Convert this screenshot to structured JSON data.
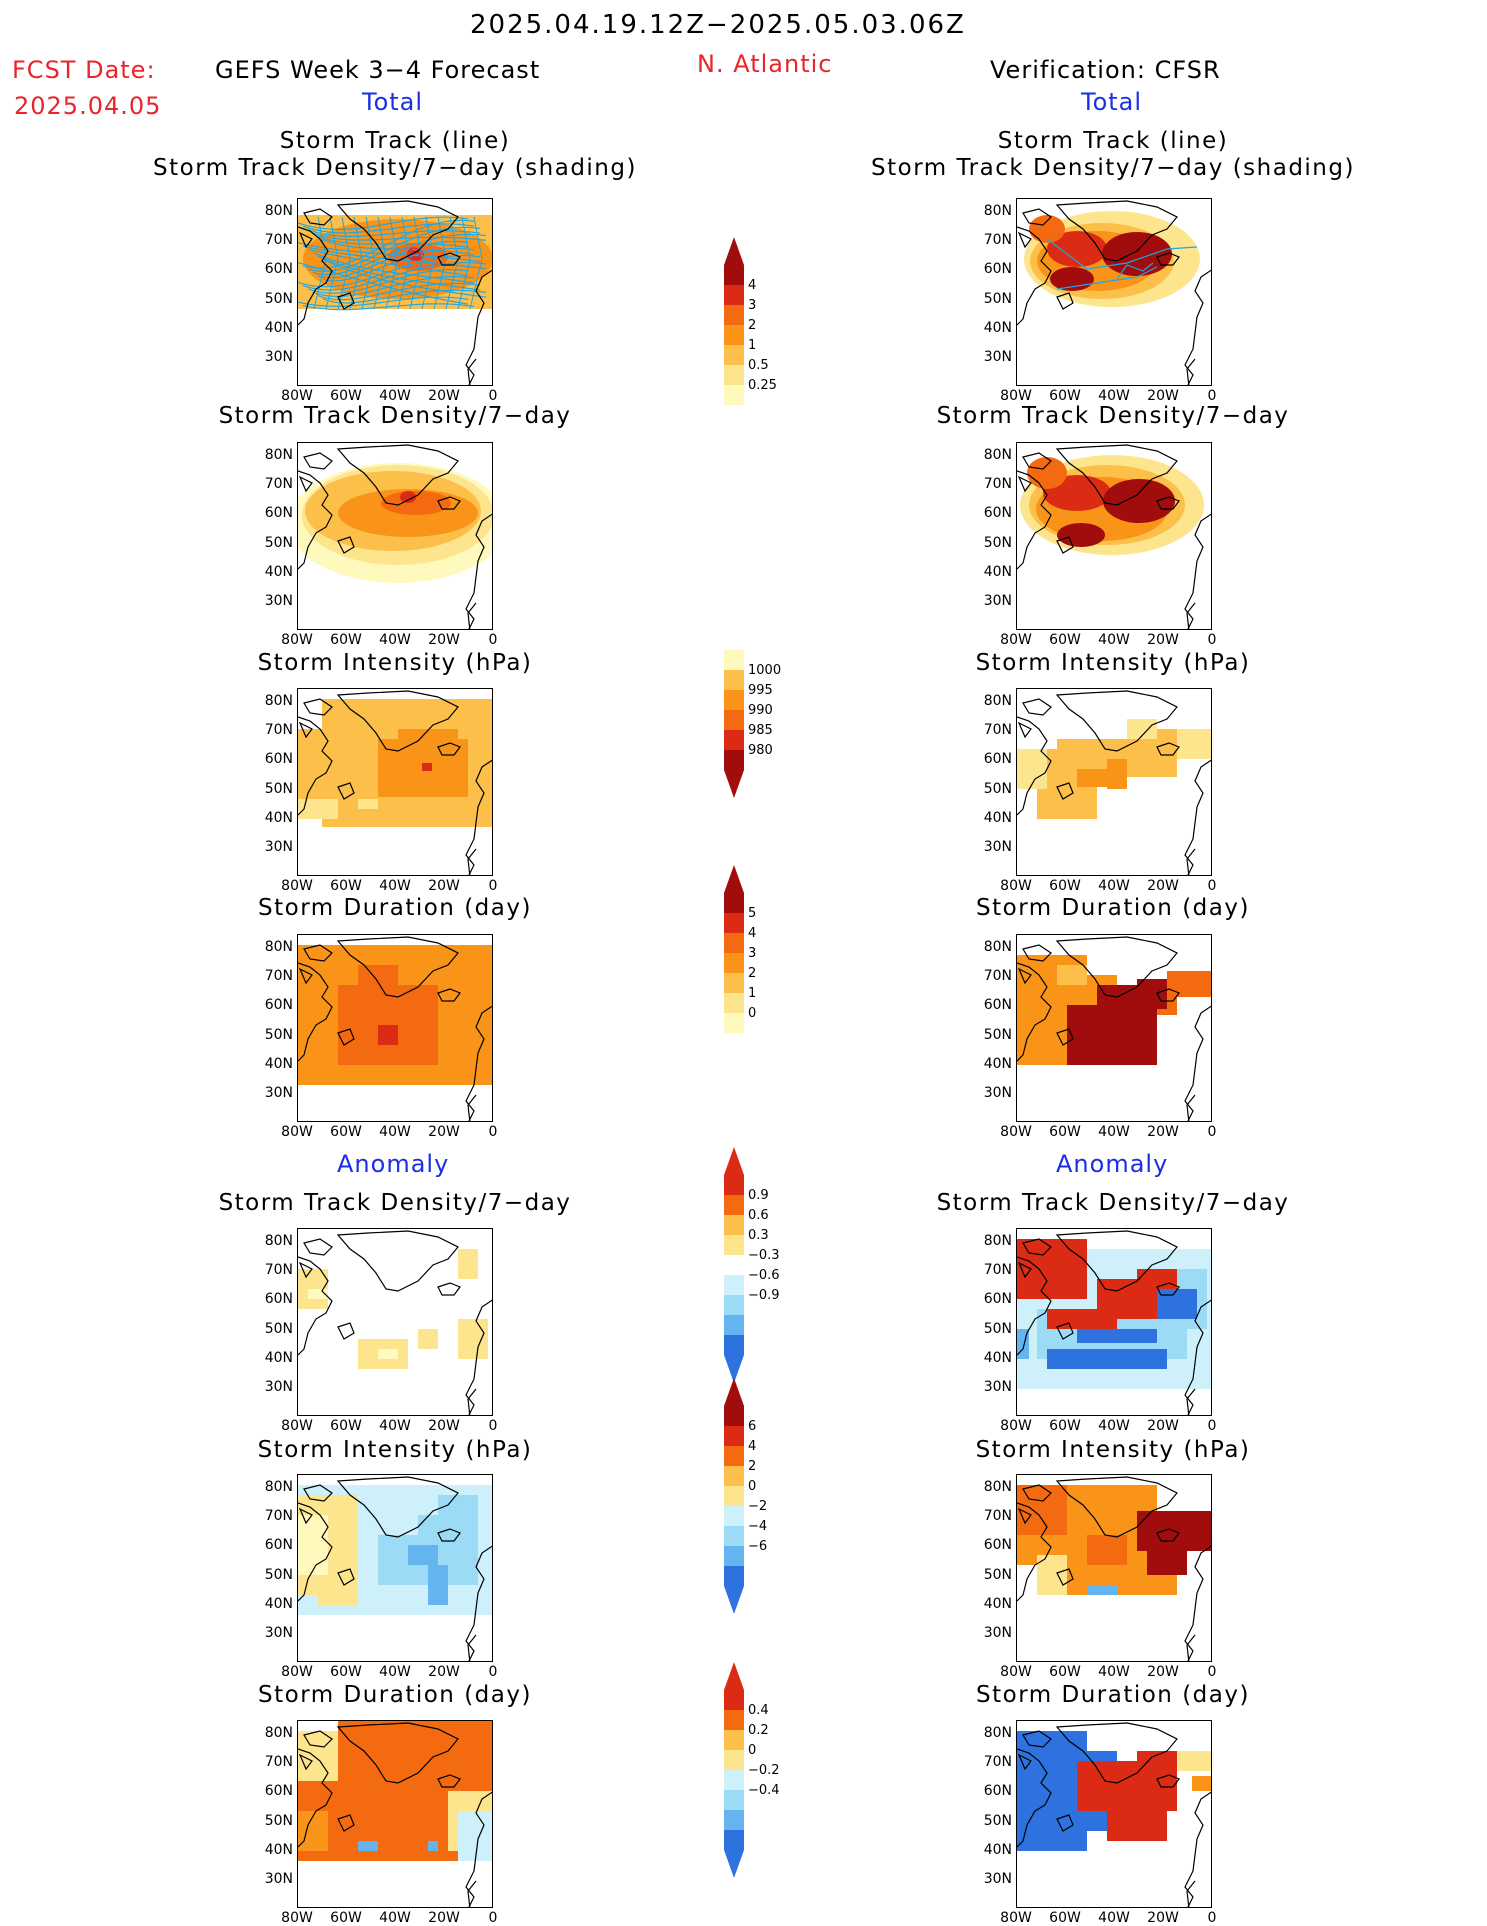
{
  "header": {
    "period": "2025.04.19.12Z−2025.05.03.06Z",
    "fcst_label": "FCST Date:",
    "fcst_date": "2025.04.05",
    "model": "GEFS Week 3−4 Forecast",
    "region": "N. Atlantic",
    "verification": "Verification: CFSR"
  },
  "sections": {
    "total": "Total",
    "anomaly": "Anomaly"
  },
  "titles": {
    "track_line": "Storm Track (line)",
    "track_shading": "Storm Track Density/7−day (shading)",
    "density": "Storm Track Density/7−day",
    "intensity": "Storm Intensity (hPa)",
    "duration": "Storm Duration (day)"
  },
  "axes": {
    "lat_ticks": [
      "80N",
      "70N",
      "60N",
      "50N",
      "40N",
      "30N"
    ],
    "lon_ticks": [
      "80W",
      "60W",
      "40W",
      "20W",
      "0"
    ]
  },
  "colors": {
    "palette_warm": [
      "#fff9bd",
      "#fde58e",
      "#fbbf4a",
      "#f99418",
      "#f46a10",
      "#dc2b14",
      "#a10c0c"
    ],
    "palette_cool": [
      "#cdf0fb",
      "#9cdbf5",
      "#63b4ef",
      "#2d72de",
      "#1f49c8"
    ],
    "track_line": "#1da7e6",
    "track_mean": "#e8252b"
  },
  "chart_data": [
    {
      "type": "heatmap",
      "panel": "GEFS total storm track density with tracks",
      "title": "Storm Track (line) / Storm Track Density/7-day (shading)",
      "field": "forecast_density_tracks",
      "colorbar": "density",
      "levels": [
        0.25,
        0.5,
        1,
        2,
        3,
        4
      ],
      "max_value": 2.5
    },
    {
      "type": "heatmap",
      "panel": "CFSR total storm track density with tracks",
      "title": "Storm Track (line) / Storm Track Density/7-day (shading)",
      "field": "verif_density_tracks",
      "colorbar": "density",
      "levels": [
        0.25,
        0.5,
        1,
        2,
        3,
        4
      ],
      "max_value": 4.5
    },
    {
      "type": "heatmap",
      "panel": "GEFS total storm track density",
      "title": "Storm Track Density/7-day",
      "field": "forecast_density",
      "colorbar": "density",
      "max_value": 2.5
    },
    {
      "type": "heatmap",
      "panel": "CFSR total storm track density",
      "title": "Storm Track Density/7-day",
      "field": "verif_density",
      "colorbar": "density",
      "max_value": 4.5
    },
    {
      "type": "heatmap",
      "panel": "GEFS total storm intensity",
      "title": "Storm Intensity (hPa)",
      "field": "forecast_intensity",
      "colorbar": "intensity",
      "levels": [
        1000,
        995,
        990,
        985,
        980
      ],
      "typical_value_hPa": 992
    },
    {
      "type": "heatmap",
      "panel": "CFSR total storm intensity",
      "title": "Storm Intensity (hPa)",
      "field": "verif_intensity",
      "colorbar": "intensity",
      "typical_value_hPa": 995
    },
    {
      "type": "heatmap",
      "panel": "GEFS total storm duration",
      "title": "Storm Duration (day)",
      "field": "forecast_duration",
      "colorbar": "duration",
      "levels": [
        0,
        1,
        2,
        3,
        4,
        5
      ],
      "typical_value_day": 3.2
    },
    {
      "type": "heatmap",
      "panel": "CFSR total storm duration",
      "title": "Storm Duration (day)",
      "field": "verif_duration",
      "colorbar": "duration",
      "typical_value_day": 4.5
    },
    {
      "type": "heatmap",
      "panel": "GEFS density anomaly",
      "title": "Storm Track Density/7-day",
      "field": "forecast_density_anom",
      "colorbar": "density_anom",
      "levels": [
        0.9,
        0.6,
        0.3,
        -0.3,
        -0.6,
        -0.9
      ]
    },
    {
      "type": "heatmap",
      "panel": "CFSR density anomaly",
      "title": "Storm Track Density/7-day",
      "field": "verif_density_anom",
      "colorbar": "density_anom"
    },
    {
      "type": "heatmap",
      "panel": "GEFS intensity anomaly",
      "title": "Storm Intensity (hPa)",
      "field": "forecast_intensity_anom",
      "colorbar": "intensity_anom",
      "levels": [
        6,
        4,
        2,
        0,
        -2,
        -4,
        -6
      ]
    },
    {
      "type": "heatmap",
      "panel": "CFSR intensity anomaly",
      "title": "Storm Intensity (hPa)",
      "field": "verif_intensity_anom",
      "colorbar": "intensity_anom"
    },
    {
      "type": "heatmap",
      "panel": "GEFS duration anomaly",
      "title": "Storm Duration (day)",
      "field": "forecast_duration_anom",
      "colorbar": "duration_anom",
      "levels": [
        0.4,
        0.2,
        0,
        -0.2,
        -0.4
      ]
    },
    {
      "type": "heatmap",
      "panel": "CFSR duration anomaly",
      "title": "Storm Duration (day)",
      "field": "verif_duration_anom",
      "colorbar": "duration_anom"
    }
  ],
  "colorbars": {
    "density": {
      "labels": [
        "4",
        "3",
        "2",
        "1",
        "0.5",
        "0.25"
      ]
    },
    "intensity": {
      "labels": [
        "1000",
        "995",
        "990",
        "985",
        "980"
      ]
    },
    "duration": {
      "labels": [
        "5",
        "4",
        "3",
        "2",
        "1",
        "0"
      ]
    },
    "density_anom": {
      "labels": [
        "0.9",
        "0.6",
        "0.3",
        "−0.3",
        "−0.6",
        "−0.9"
      ]
    },
    "intensity_anom": {
      "labels": [
        "6",
        "4",
        "2",
        "0",
        "−2",
        "−4",
        "−6"
      ]
    },
    "duration_anom": {
      "labels": [
        "0.4",
        "0.2",
        "0",
        "−0.2",
        "−0.4"
      ]
    }
  }
}
